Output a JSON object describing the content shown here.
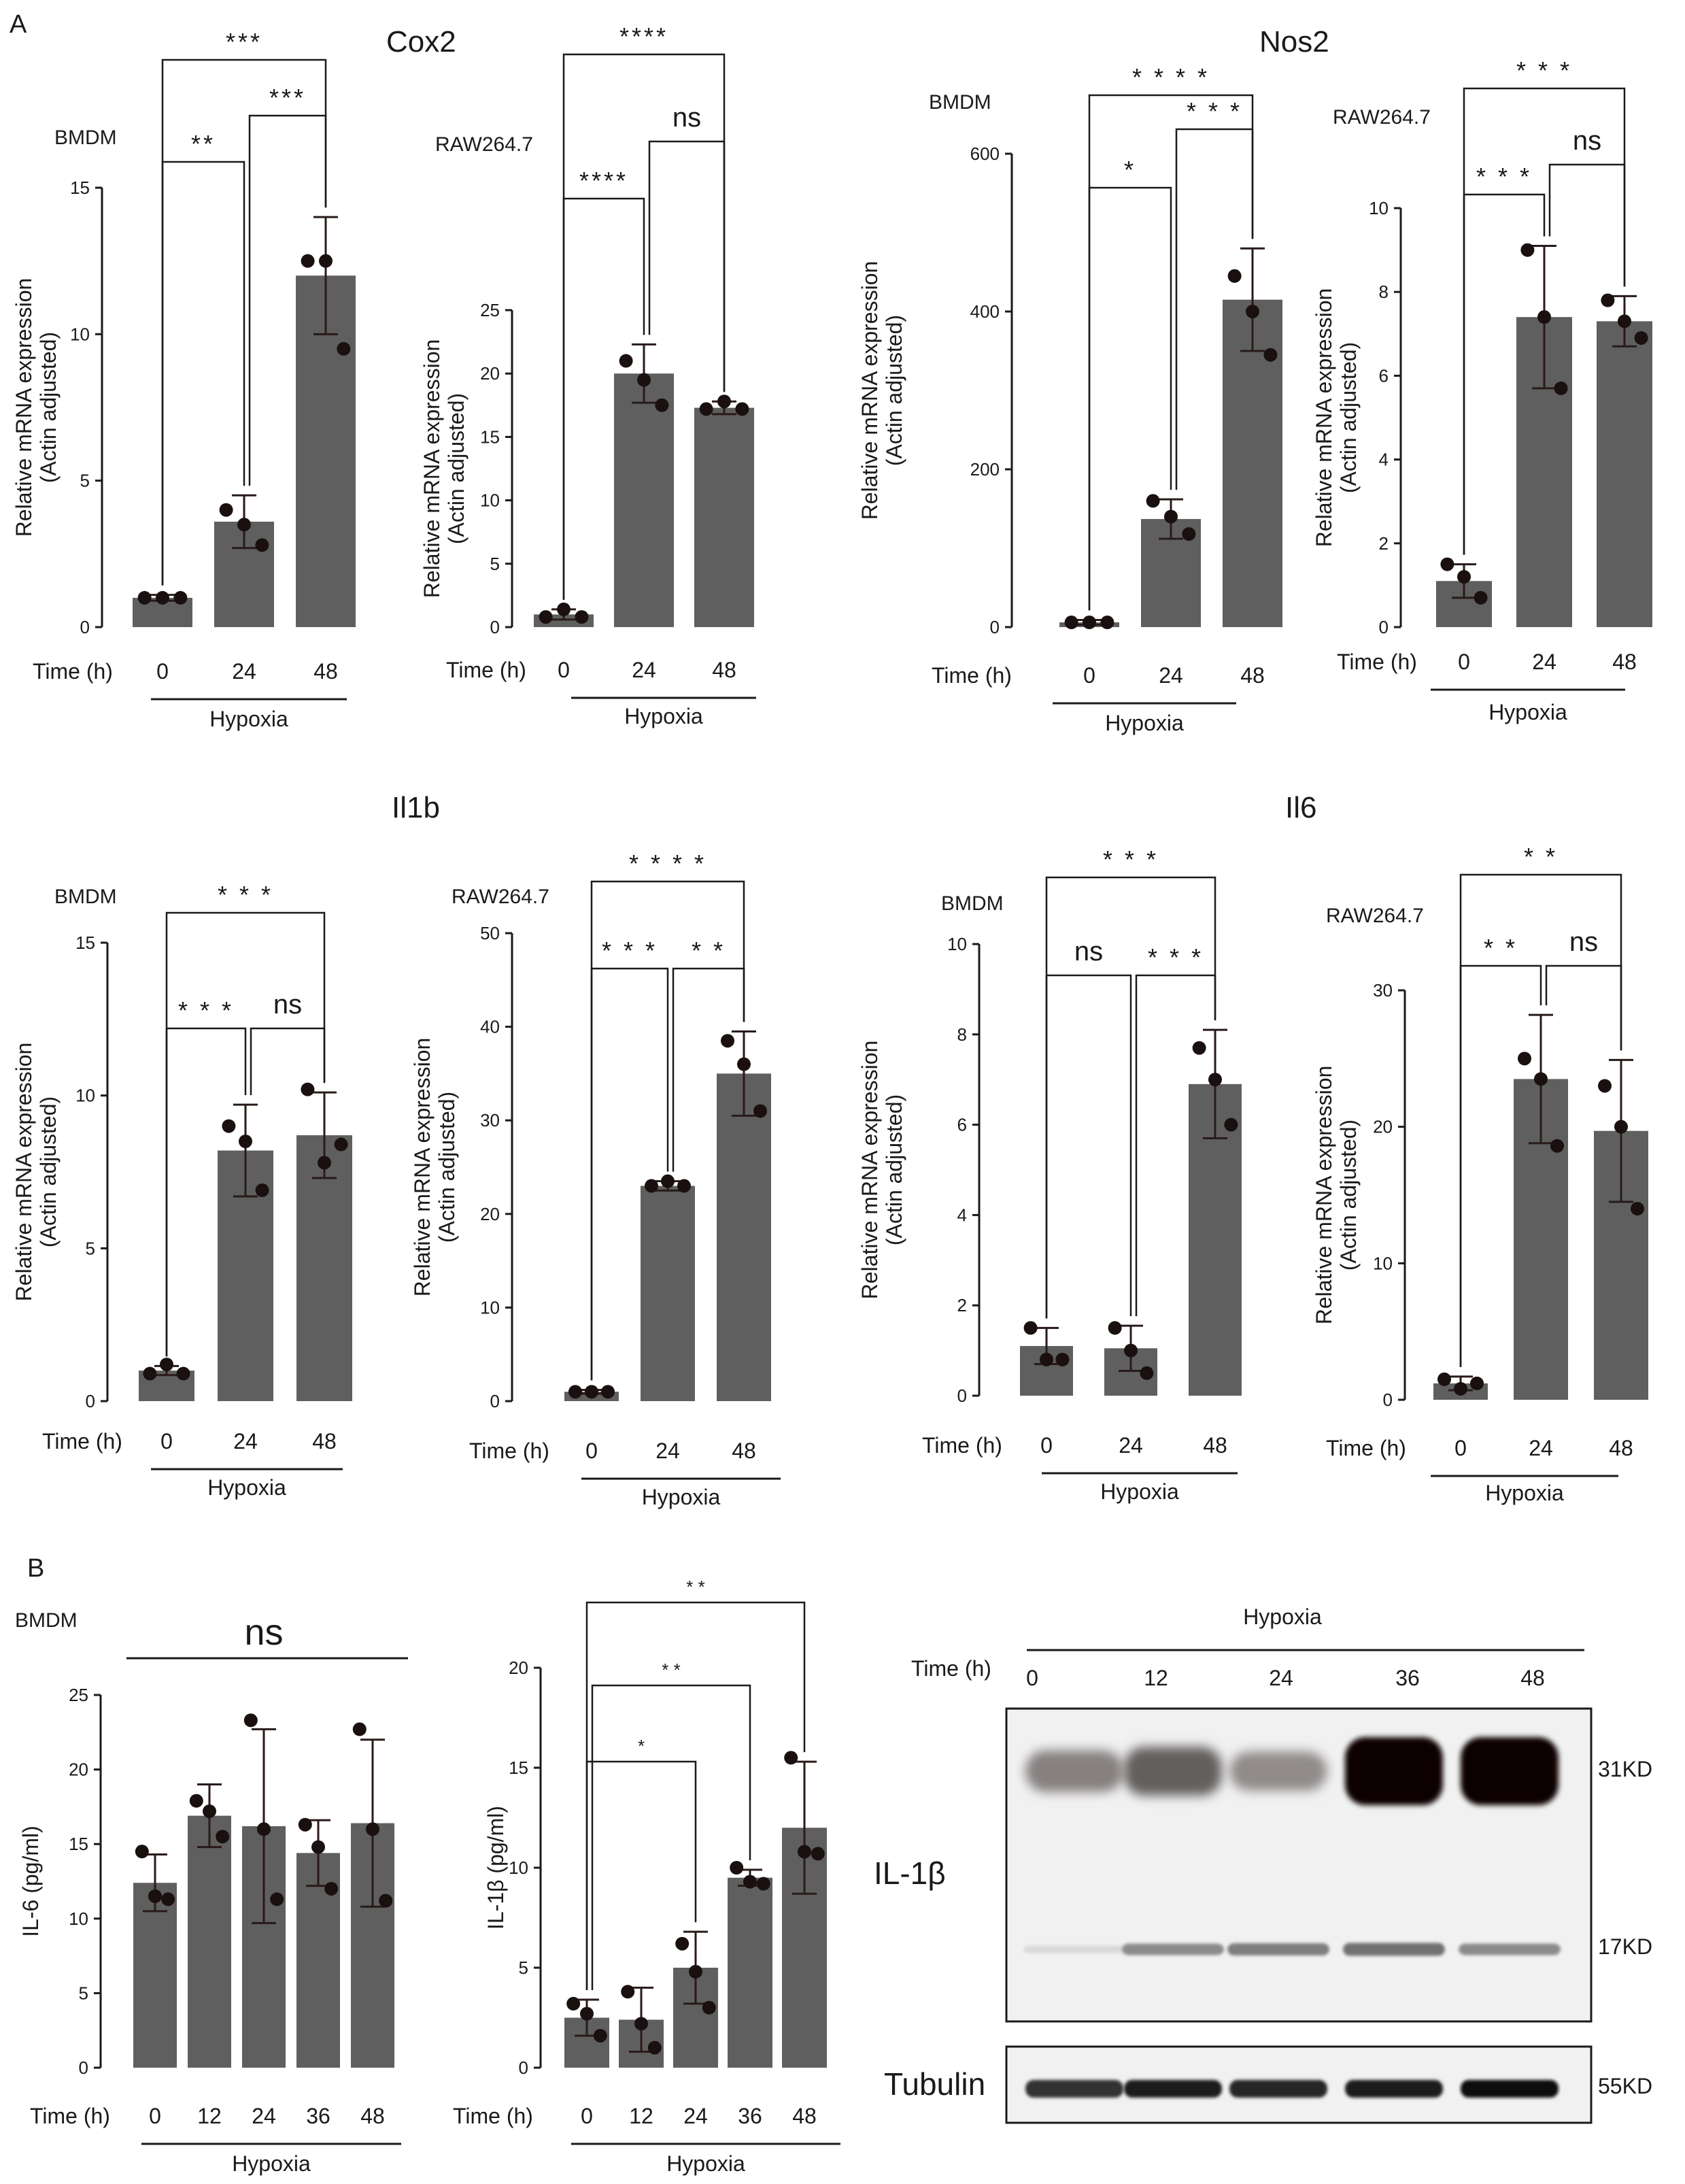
{
  "panel_labels": [
    "A",
    "B"
  ],
  "gene_titles": [
    "Cox2",
    "Nos2",
    "Il1b",
    "Il6"
  ],
  "axis_common": {
    "ylabel_line1": "Relative mRNA expression",
    "ylabel_line2": "(Actin adjusted)",
    "time_label": "Time (h)",
    "group_label": "Hypoxia"
  },
  "colors": {
    "bar": "#5f5f5f",
    "dot": "#1a1010",
    "error_bar": "#2a1a1a",
    "axis": "#1a1a1a"
  },
  "chart_data": [
    {
      "id": "cox2-bmdm",
      "type": "bar",
      "cell": "BMDM",
      "categories": [
        "0",
        "24",
        "48"
      ],
      "values": [
        1.0,
        3.6,
        12.0
      ],
      "sd": [
        0.1,
        0.9,
        2.0
      ],
      "points": [
        [
          1.0,
          1.0,
          1.0
        ],
        [
          4.0,
          3.5,
          2.8
        ],
        [
          12.5,
          12.5,
          9.5
        ]
      ],
      "yticks": [
        0,
        5,
        10,
        15
      ],
      "ylim": [
        0,
        15
      ],
      "ylabel": "Relative mRNA expression (Actin adjusted)",
      "xlabel": "Time (h)",
      "brackets": [
        {
          "from": 0,
          "to": 1,
          "label": "**"
        },
        {
          "from": 1,
          "to": 2,
          "label": "***"
        },
        {
          "from": 0,
          "to": 2,
          "label": "***"
        }
      ]
    },
    {
      "id": "cox2-raw",
      "type": "bar",
      "cell": "RAW264.7",
      "categories": [
        "0",
        "24",
        "48"
      ],
      "values": [
        1.0,
        20.0,
        17.3
      ],
      "sd": [
        0.4,
        2.3,
        0.5
      ],
      "points": [
        [
          0.8,
          1.4,
          0.8
        ],
        [
          21.0,
          19.5,
          17.5
        ],
        [
          17.2,
          17.8,
          17.2
        ]
      ],
      "yticks": [
        0,
        5,
        10,
        15,
        20,
        25
      ],
      "ylim": [
        0,
        25
      ],
      "ylabel": "Relative mRNA expression (Actin adjusted)",
      "xlabel": "Time (h)",
      "brackets": [
        {
          "from": 0,
          "to": 1,
          "label": "****"
        },
        {
          "from": 1,
          "to": 2,
          "label": "ns"
        },
        {
          "from": 0,
          "to": 2,
          "label": "****"
        }
      ]
    },
    {
      "id": "nos2-bmdm",
      "type": "bar",
      "cell": "BMDM",
      "categories": [
        "0",
        "24",
        "48"
      ],
      "values": [
        6,
        137,
        415
      ],
      "sd": [
        3,
        25,
        65
      ],
      "points": [
        [
          6,
          6,
          6
        ],
        [
          160,
          140,
          118
        ],
        [
          445,
          400,
          345
        ]
      ],
      "yticks": [
        0,
        200,
        400,
        600
      ],
      "ylim": [
        0,
        600
      ],
      "ylabel": "Relative mRNA expression (Actin adjusted)",
      "xlabel": "Time (h)",
      "brackets": [
        {
          "from": 0,
          "to": 1,
          "label": "*"
        },
        {
          "from": 1,
          "to": 2,
          "label": "* * *"
        },
        {
          "from": 0,
          "to": 2,
          "label": "* * * *"
        }
      ]
    },
    {
      "id": "nos2-raw",
      "type": "bar",
      "cell": "RAW264.7",
      "categories": [
        "0",
        "24",
        "48"
      ],
      "values": [
        1.1,
        7.4,
        7.3
      ],
      "sd": [
        0.4,
        1.7,
        0.6
      ],
      "points": [
        [
          1.5,
          1.2,
          0.7
        ],
        [
          9.0,
          7.4,
          5.7
        ],
        [
          7.8,
          7.3,
          6.9
        ]
      ],
      "yticks": [
        0,
        2,
        4,
        6,
        8,
        10
      ],
      "ylim": [
        0,
        10
      ],
      "ylabel": "Relative mRNA expression (Actin adjusted)",
      "xlabel": "Time (h)",
      "brackets": [
        {
          "from": 0,
          "to": 1,
          "label": "* * *"
        },
        {
          "from": 1,
          "to": 2,
          "label": "ns"
        },
        {
          "from": 0,
          "to": 2,
          "label": "* * *"
        }
      ]
    },
    {
      "id": "il1b-bmdm",
      "type": "bar",
      "cell": "BMDM",
      "categories": [
        "0",
        "24",
        "48"
      ],
      "values": [
        1.0,
        8.2,
        8.7
      ],
      "sd": [
        0.15,
        1.5,
        1.4
      ],
      "points": [
        [
          0.9,
          1.2,
          0.9
        ],
        [
          9.0,
          8.5,
          6.9
        ],
        [
          10.2,
          7.8,
          8.4
        ]
      ],
      "yticks": [
        0,
        5,
        10,
        15
      ],
      "ylim": [
        0,
        15
      ],
      "ylabel": "Relative mRNA expression (Actin adjusted)",
      "xlabel": "Time (h)",
      "brackets": [
        {
          "from": 0,
          "to": 1,
          "label": "* * *"
        },
        {
          "from": 1,
          "to": 2,
          "label": "ns"
        },
        {
          "from": 0,
          "to": 2,
          "label": "* * *"
        }
      ]
    },
    {
      "id": "il1b-raw",
      "type": "bar",
      "cell": "RAW264.7",
      "categories": [
        "0",
        "24",
        "48"
      ],
      "values": [
        1.0,
        23.0,
        35.0
      ],
      "sd": [
        0.2,
        0.5,
        4.5
      ],
      "points": [
        [
          1.0,
          1.0,
          1.0
        ],
        [
          23.0,
          23.5,
          23.0
        ],
        [
          38.5,
          36.0,
          31.0
        ]
      ],
      "yticks": [
        0,
        10,
        20,
        30,
        40,
        50
      ],
      "ylim": [
        0,
        50
      ],
      "ylabel": "Relative mRNA expression (Actin adjusted)",
      "xlabel": "Time (h)",
      "brackets": [
        {
          "from": 0,
          "to": 1,
          "label": "* * *"
        },
        {
          "from": 1,
          "to": 2,
          "label": "* *"
        },
        {
          "from": 0,
          "to": 2,
          "label": "* * * *"
        }
      ]
    },
    {
      "id": "il6-bmdm",
      "type": "bar",
      "cell": "BMDM",
      "categories": [
        "0",
        "24",
        "48"
      ],
      "values": [
        1.1,
        1.05,
        6.9
      ],
      "sd": [
        0.4,
        0.5,
        1.2
      ],
      "points": [
        [
          1.5,
          0.8,
          0.8
        ],
        [
          1.5,
          1.0,
          0.5
        ],
        [
          7.7,
          7.0,
          6.0
        ]
      ],
      "yticks": [
        0,
        2,
        4,
        6,
        8,
        10
      ],
      "ylim": [
        0,
        10
      ],
      "ylabel": "Relative mRNA expression (Actin adjusted)",
      "xlabel": "Time (h)",
      "brackets": [
        {
          "from": 0,
          "to": 1,
          "label": "ns"
        },
        {
          "from": 1,
          "to": 2,
          "label": "* * *"
        },
        {
          "from": 0,
          "to": 2,
          "label": "* * *"
        }
      ]
    },
    {
      "id": "il6-raw",
      "type": "bar",
      "cell": "RAW264.7",
      "categories": [
        "0",
        "24",
        "48"
      ],
      "values": [
        1.2,
        23.5,
        19.7
      ],
      "sd": [
        0.5,
        4.7,
        5.2
      ],
      "points": [
        [
          1.5,
          0.8,
          1.2
        ],
        [
          25.0,
          23.5,
          18.6
        ],
        [
          23.0,
          20.0,
          14.0
        ]
      ],
      "yticks": [
        0,
        10,
        20,
        30
      ],
      "ylim": [
        0,
        30
      ],
      "ylabel": "Relative mRNA expression (Actin adjusted)",
      "xlabel": "Time (h)",
      "brackets": [
        {
          "from": 0,
          "to": 1,
          "label": "* *"
        },
        {
          "from": 1,
          "to": 2,
          "label": "ns"
        },
        {
          "from": 0,
          "to": 2,
          "label": "* *"
        }
      ]
    },
    {
      "id": "il6-protein",
      "type": "bar",
      "cell": "BMDM",
      "categories": [
        "0",
        "12",
        "24",
        "36",
        "48"
      ],
      "values": [
        12.4,
        16.9,
        16.2,
        14.4,
        16.4
      ],
      "sd": [
        1.9,
        2.1,
        6.5,
        2.2,
        5.6
      ],
      "points": [
        [
          14.5,
          11.5,
          11.3
        ],
        [
          17.9,
          17.2,
          15.5
        ],
        [
          23.3,
          16.0,
          11.3
        ],
        [
          16.3,
          14.8,
          12.0
        ],
        [
          22.7,
          16.0,
          11.2
        ]
      ],
      "yticks": [
        0,
        5,
        10,
        15,
        20,
        25
      ],
      "ylim": [
        0,
        25
      ],
      "ylabel": "IL-6 (pg/ml)",
      "xlabel": "Time (h)",
      "brackets": [
        {
          "from": 0,
          "to": 4,
          "label": "ns",
          "plain": true
        }
      ]
    },
    {
      "id": "il1b-protein",
      "type": "bar",
      "categories": [
        "0",
        "12",
        "24",
        "36",
        "48"
      ],
      "values": [
        2.5,
        2.4,
        5.0,
        9.5,
        12.0
      ],
      "sd": [
        0.9,
        1.6,
        1.8,
        0.4,
        3.3
      ],
      "points": [
        [
          3.2,
          2.7,
          1.6
        ],
        [
          3.8,
          2.2,
          1.0
        ],
        [
          6.2,
          4.8,
          3.0
        ],
        [
          10.0,
          9.3,
          9.2
        ],
        [
          15.5,
          10.8,
          10.7
        ]
      ],
      "yticks": [
        0,
        5,
        10,
        15,
        20
      ],
      "ylim": [
        0,
        20
      ],
      "ylabel": "IL-1β (pg/ml)",
      "xlabel": "Time (h)",
      "brackets": [
        {
          "from": 0,
          "to": 2,
          "label": "*"
        },
        {
          "from": 0,
          "to": 3,
          "label": "* *"
        },
        {
          "from": 0,
          "to": 4,
          "label": "* *"
        }
      ]
    }
  ],
  "western_blot": {
    "group_label": "Hypoxia",
    "time_label": "Time (h)",
    "lanes": [
      "0",
      "12",
      "24",
      "36",
      "48"
    ],
    "protein_label": "IL-1β",
    "loading_label": "Tubulin",
    "mw_markers": [
      "31KD",
      "17KD",
      "55KD"
    ],
    "band_31kd_intensity": [
      0.45,
      0.6,
      0.4,
      1.0,
      1.0
    ],
    "band_17kd_intensity": [
      0.05,
      0.35,
      0.4,
      0.45,
      0.35
    ],
    "tubulin_intensity": [
      0.75,
      0.85,
      0.8,
      0.85,
      0.95
    ]
  }
}
